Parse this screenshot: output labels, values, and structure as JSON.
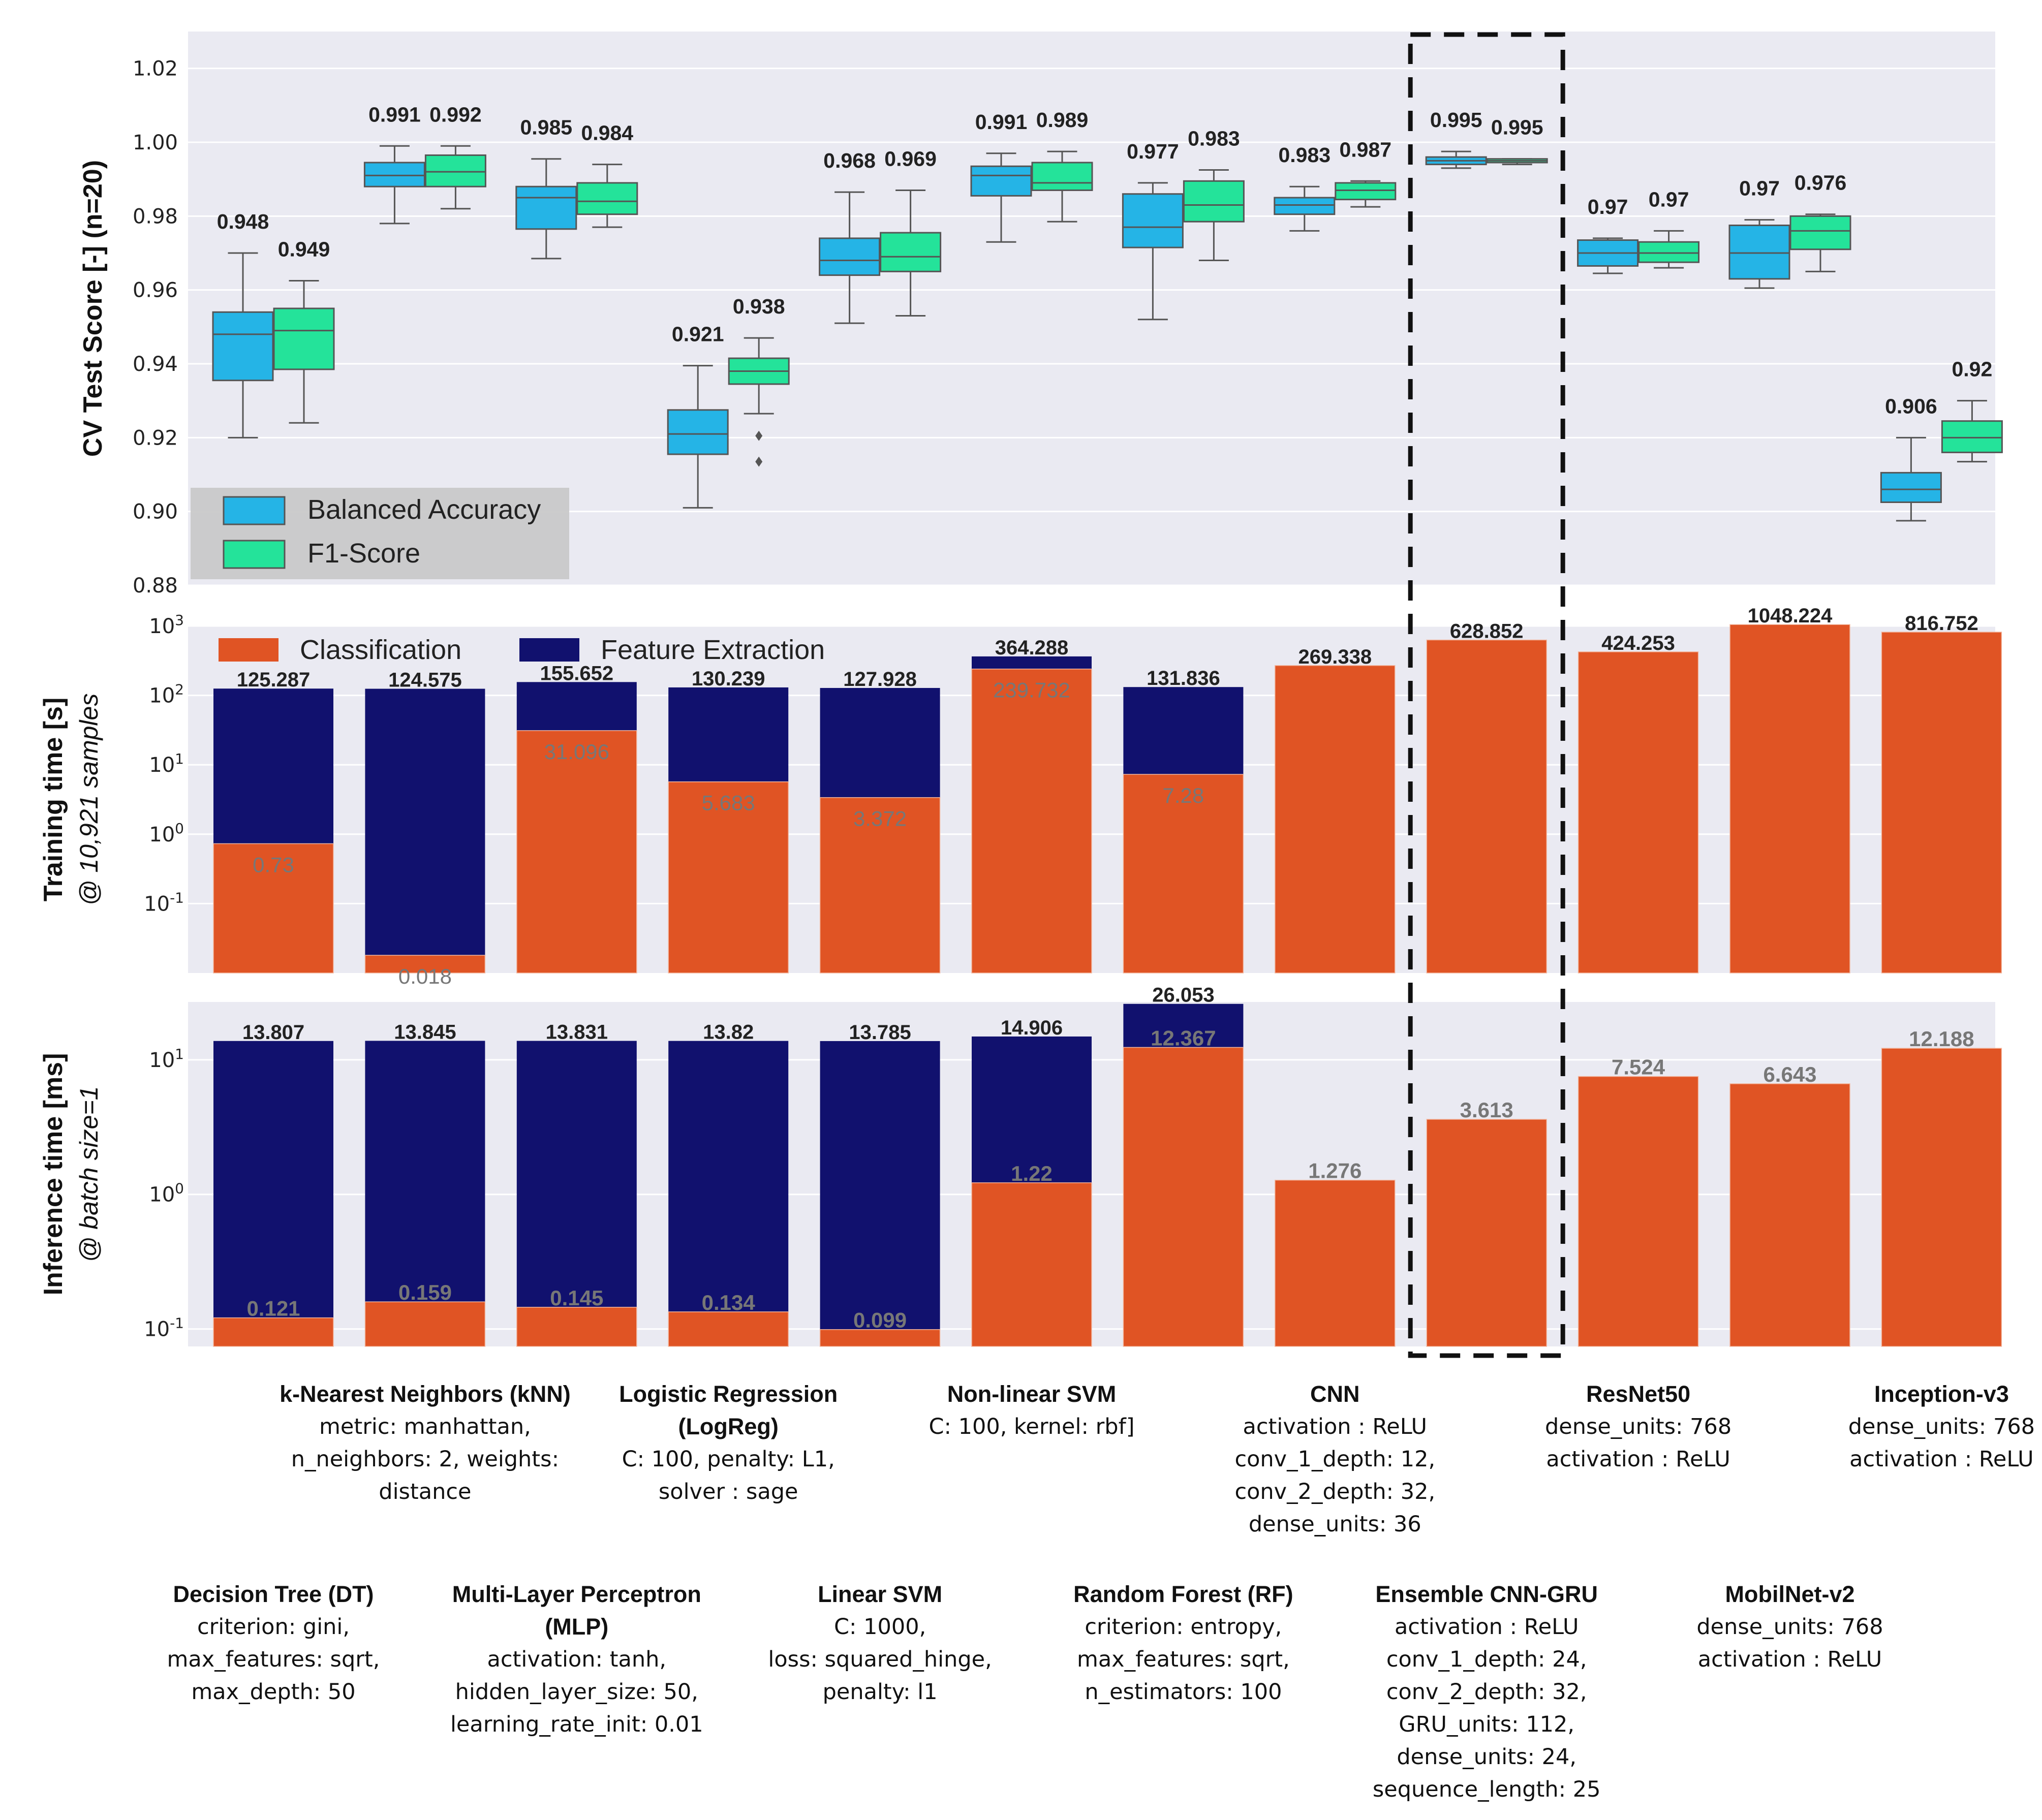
{
  "chart_data": [
    {
      "type": "box",
      "ylabel": "CV Test Score [-] (n=20)",
      "ylim": [
        0.88,
        1.03
      ],
      "yticks": [
        "0.88",
        "0.90",
        "0.92",
        "0.94",
        "0.96",
        "0.98",
        "1.00",
        "1.02"
      ],
      "legend": {
        "placement": "bottom-left",
        "entries": [
          "Balanced Accuracy",
          "F1-Score"
        ]
      },
      "colors": {
        "Balanced Accuracy": "#25b4e6",
        "F1-Score": "#24e39a"
      },
      "series": [
        {
          "name": "Balanced Accuracy",
          "boxes": [
            {
              "label": "0.948",
              "min": 0.92,
              "q1": 0.9355,
              "med": 0.948,
              "q3": 0.954,
              "max": 0.97,
              "outliers": []
            },
            {
              "label": "0.991",
              "min": 0.978,
              "q1": 0.988,
              "med": 0.991,
              "q3": 0.9945,
              "max": 0.999,
              "outliers": []
            },
            {
              "label": "0.985",
              "min": 0.9685,
              "q1": 0.9765,
              "med": 0.985,
              "q3": 0.988,
              "max": 0.9955,
              "outliers": []
            },
            {
              "label": "0.921",
              "min": 0.901,
              "q1": 0.9155,
              "med": 0.921,
              "q3": 0.9275,
              "max": 0.9395,
              "outliers": []
            },
            {
              "label": "0.968",
              "min": 0.951,
              "q1": 0.964,
              "med": 0.968,
              "q3": 0.974,
              "max": 0.9865,
              "outliers": []
            },
            {
              "label": "0.991",
              "min": 0.973,
              "q1": 0.9855,
              "med": 0.991,
              "q3": 0.9935,
              "max": 0.997,
              "outliers": []
            },
            {
              "label": "0.977",
              "min": 0.952,
              "q1": 0.9715,
              "med": 0.977,
              "q3": 0.986,
              "max": 0.989,
              "outliers": []
            },
            {
              "label": "0.983",
              "min": 0.976,
              "q1": 0.9805,
              "med": 0.983,
              "q3": 0.985,
              "max": 0.988,
              "outliers": []
            },
            {
              "label": "0.995",
              "min": 0.993,
              "q1": 0.994,
              "med": 0.995,
              "q3": 0.996,
              "max": 0.9975,
              "outliers": []
            },
            {
              "label": "0.97",
              "min": 0.9645,
              "q1": 0.9665,
              "med": 0.97,
              "q3": 0.9735,
              "max": 0.974,
              "outliers": []
            },
            {
              "label": "0.97",
              "min": 0.9605,
              "q1": 0.963,
              "med": 0.97,
              "q3": 0.9775,
              "max": 0.979,
              "outliers": []
            },
            {
              "label": "0.906",
              "min": 0.8975,
              "q1": 0.9025,
              "med": 0.906,
              "q3": 0.9105,
              "max": 0.92,
              "outliers": []
            }
          ]
        },
        {
          "name": "F1-Score",
          "boxes": [
            {
              "label": "0.949",
              "min": 0.924,
              "q1": 0.9385,
              "med": 0.949,
              "q3": 0.955,
              "max": 0.9625,
              "outliers": []
            },
            {
              "label": "0.992",
              "min": 0.982,
              "q1": 0.988,
              "med": 0.992,
              "q3": 0.9965,
              "max": 0.999,
              "outliers": []
            },
            {
              "label": "0.984",
              "min": 0.977,
              "q1": 0.9805,
              "med": 0.984,
              "q3": 0.989,
              "max": 0.994,
              "outliers": []
            },
            {
              "label": "0.938",
              "min": 0.9265,
              "q1": 0.9345,
              "med": 0.938,
              "q3": 0.9415,
              "max": 0.947,
              "outliers": [
                0.9205,
                0.9135
              ]
            },
            {
              "label": "0.969",
              "min": 0.953,
              "q1": 0.965,
              "med": 0.969,
              "q3": 0.9755,
              "max": 0.987,
              "outliers": []
            },
            {
              "label": "0.989",
              "min": 0.9785,
              "q1": 0.987,
              "med": 0.989,
              "q3": 0.9945,
              "max": 0.9975,
              "outliers": []
            },
            {
              "label": "0.983",
              "min": 0.968,
              "q1": 0.9785,
              "med": 0.983,
              "q3": 0.9895,
              "max": 0.9925,
              "outliers": []
            },
            {
              "label": "0.987",
              "min": 0.9825,
              "q1": 0.9845,
              "med": 0.987,
              "q3": 0.989,
              "max": 0.9895,
              "outliers": []
            },
            {
              "label": "0.995",
              "min": 0.994,
              "q1": 0.9945,
              "med": 0.995,
              "q3": 0.9955,
              "max": 0.9955,
              "outliers": []
            },
            {
              "label": "0.97",
              "min": 0.966,
              "q1": 0.9675,
              "med": 0.97,
              "q3": 0.973,
              "max": 0.976,
              "outliers": []
            },
            {
              "label": "0.976",
              "min": 0.965,
              "q1": 0.971,
              "med": 0.976,
              "q3": 0.98,
              "max": 0.9805,
              "outliers": []
            },
            {
              "label": "0.92",
              "min": 0.9135,
              "q1": 0.916,
              "med": 0.92,
              "q3": 0.9245,
              "max": 0.93,
              "outliers": []
            }
          ]
        }
      ]
    },
    {
      "type": "bar",
      "stacked": true,
      "yscale": "log",
      "ylabel": "Training time [s]",
      "ylabel2": "@ 10,921 samples",
      "ylim_exp": [
        -2,
        3
      ],
      "ytick_exps": [
        "-1",
        "0",
        "1",
        "2",
        "3"
      ],
      "legend": {
        "placement": "top-left",
        "entries": [
          "Classification",
          "Feature Extraction"
        ]
      },
      "colors": {
        "Classification": "#e05424",
        "Feature Extraction": "#11116e"
      },
      "totals": [
        125.287,
        124.575,
        155.652,
        130.239,
        127.928,
        364.288,
        131.836,
        269.338,
        628.852,
        424.253,
        1048.224,
        816.752
      ],
      "total_labels": [
        "125.287",
        "124.575",
        "155.652",
        "130.239",
        "127.928",
        "364.288",
        "131.836",
        "269.338",
        "628.852",
        "424.253",
        "1048.224",
        "816.752"
      ],
      "classification": [
        0.73,
        0.018,
        31.096,
        5.683,
        3.372,
        239.732,
        7.28,
        269.338,
        628.852,
        424.253,
        1048.224,
        816.752
      ],
      "classification_labels": [
        "0.73",
        "0.018",
        "31.096",
        "5.683",
        "3.372",
        "239.732",
        "7.28",
        "",
        "",
        "",
        "",
        ""
      ]
    },
    {
      "type": "bar",
      "stacked": true,
      "yscale": "log",
      "ylabel": "Inference time [ms]",
      "ylabel2": "@ batch size=1",
      "ylim_exp": [
        -1.13,
        1.43
      ],
      "ytick_exps": [
        "-1",
        "0",
        "1"
      ],
      "colors": {
        "Classification": "#e05424",
        "Feature Extraction": "#11116e"
      },
      "totals": [
        13.807,
        13.845,
        13.831,
        13.82,
        13.785,
        14.906,
        26.053,
        1.276,
        3.613,
        7.524,
        6.643,
        12.188
      ],
      "total_labels": [
        "13.807",
        "13.845",
        "13.831",
        "13.82",
        "13.785",
        "14.906",
        "26.053",
        "",
        "",
        "",
        "",
        ""
      ],
      "classification": [
        0.121,
        0.159,
        0.145,
        0.134,
        0.099,
        1.22,
        12.367,
        1.276,
        3.613,
        7.524,
        6.643,
        12.188
      ],
      "classification_labels": [
        "0.121",
        "0.159",
        "0.145",
        "0.134",
        "0.099",
        "1.22",
        "12.367",
        "1.276",
        "3.613",
        "7.524",
        "6.643",
        "12.188"
      ]
    }
  ],
  "models": [
    {
      "name": "Decision Tree (DT)",
      "lines": [
        "criterion: gini,",
        "max_features: sqrt,",
        "max_depth: 50"
      ]
    },
    {
      "name": "k-Nearest Neighbors (kNN)",
      "lines": [
        "metric: manhattan,",
        "n_neighbors: 2, weights:",
        "distance"
      ]
    },
    {
      "name": "Multi-Layer Perceptron (MLP)",
      "lines": [
        "activation: tanh,",
        "hidden_layer_size: 50,",
        "learning_rate_init: 0.01"
      ]
    },
    {
      "name": "Logistic Regression\n(LogReg)",
      "lines": [
        "C: 100, penalty: L1,",
        "solver : sage"
      ]
    },
    {
      "name": "Linear SVM",
      "lines": [
        "C: 1000,",
        "loss: squared_hinge,",
        "penalty: l1"
      ]
    },
    {
      "name": "Non-linear SVM",
      "lines": [
        "C: 100, kernel: rbf]"
      ]
    },
    {
      "name": "Random Forest (RF)",
      "lines": [
        "criterion: entropy,",
        "max_features: sqrt,",
        "n_estimators: 100"
      ]
    },
    {
      "name": "CNN",
      "lines": [
        "activation : ReLU",
        "conv_1_depth: 12,",
        "conv_2_depth: 32,",
        "dense_units: 36"
      ]
    },
    {
      "name": "Ensemble CNN-GRU",
      "lines": [
        "activation : ReLU",
        "conv_1_depth: 24,",
        "conv_2_depth: 32,",
        "GRU_units: 112,",
        "dense_units: 24,",
        "sequence_length: 25"
      ]
    },
    {
      "name": "ResNet50",
      "lines": [
        "dense_units: 768",
        "activation : ReLU"
      ]
    },
    {
      "name": "MobilNet-v2",
      "lines": [
        "dense_units: 768",
        "activation : ReLU"
      ]
    },
    {
      "name": "Inception-v3",
      "lines": [
        "dense_units: 768",
        "activation : ReLU"
      ]
    }
  ],
  "highlight_index": 8,
  "style": {
    "panel_bg": "#eaeaf2",
    "grid": "#ffffff",
    "highlight": "#111111",
    "total_label": "#222222",
    "class_label": "#777777"
  }
}
